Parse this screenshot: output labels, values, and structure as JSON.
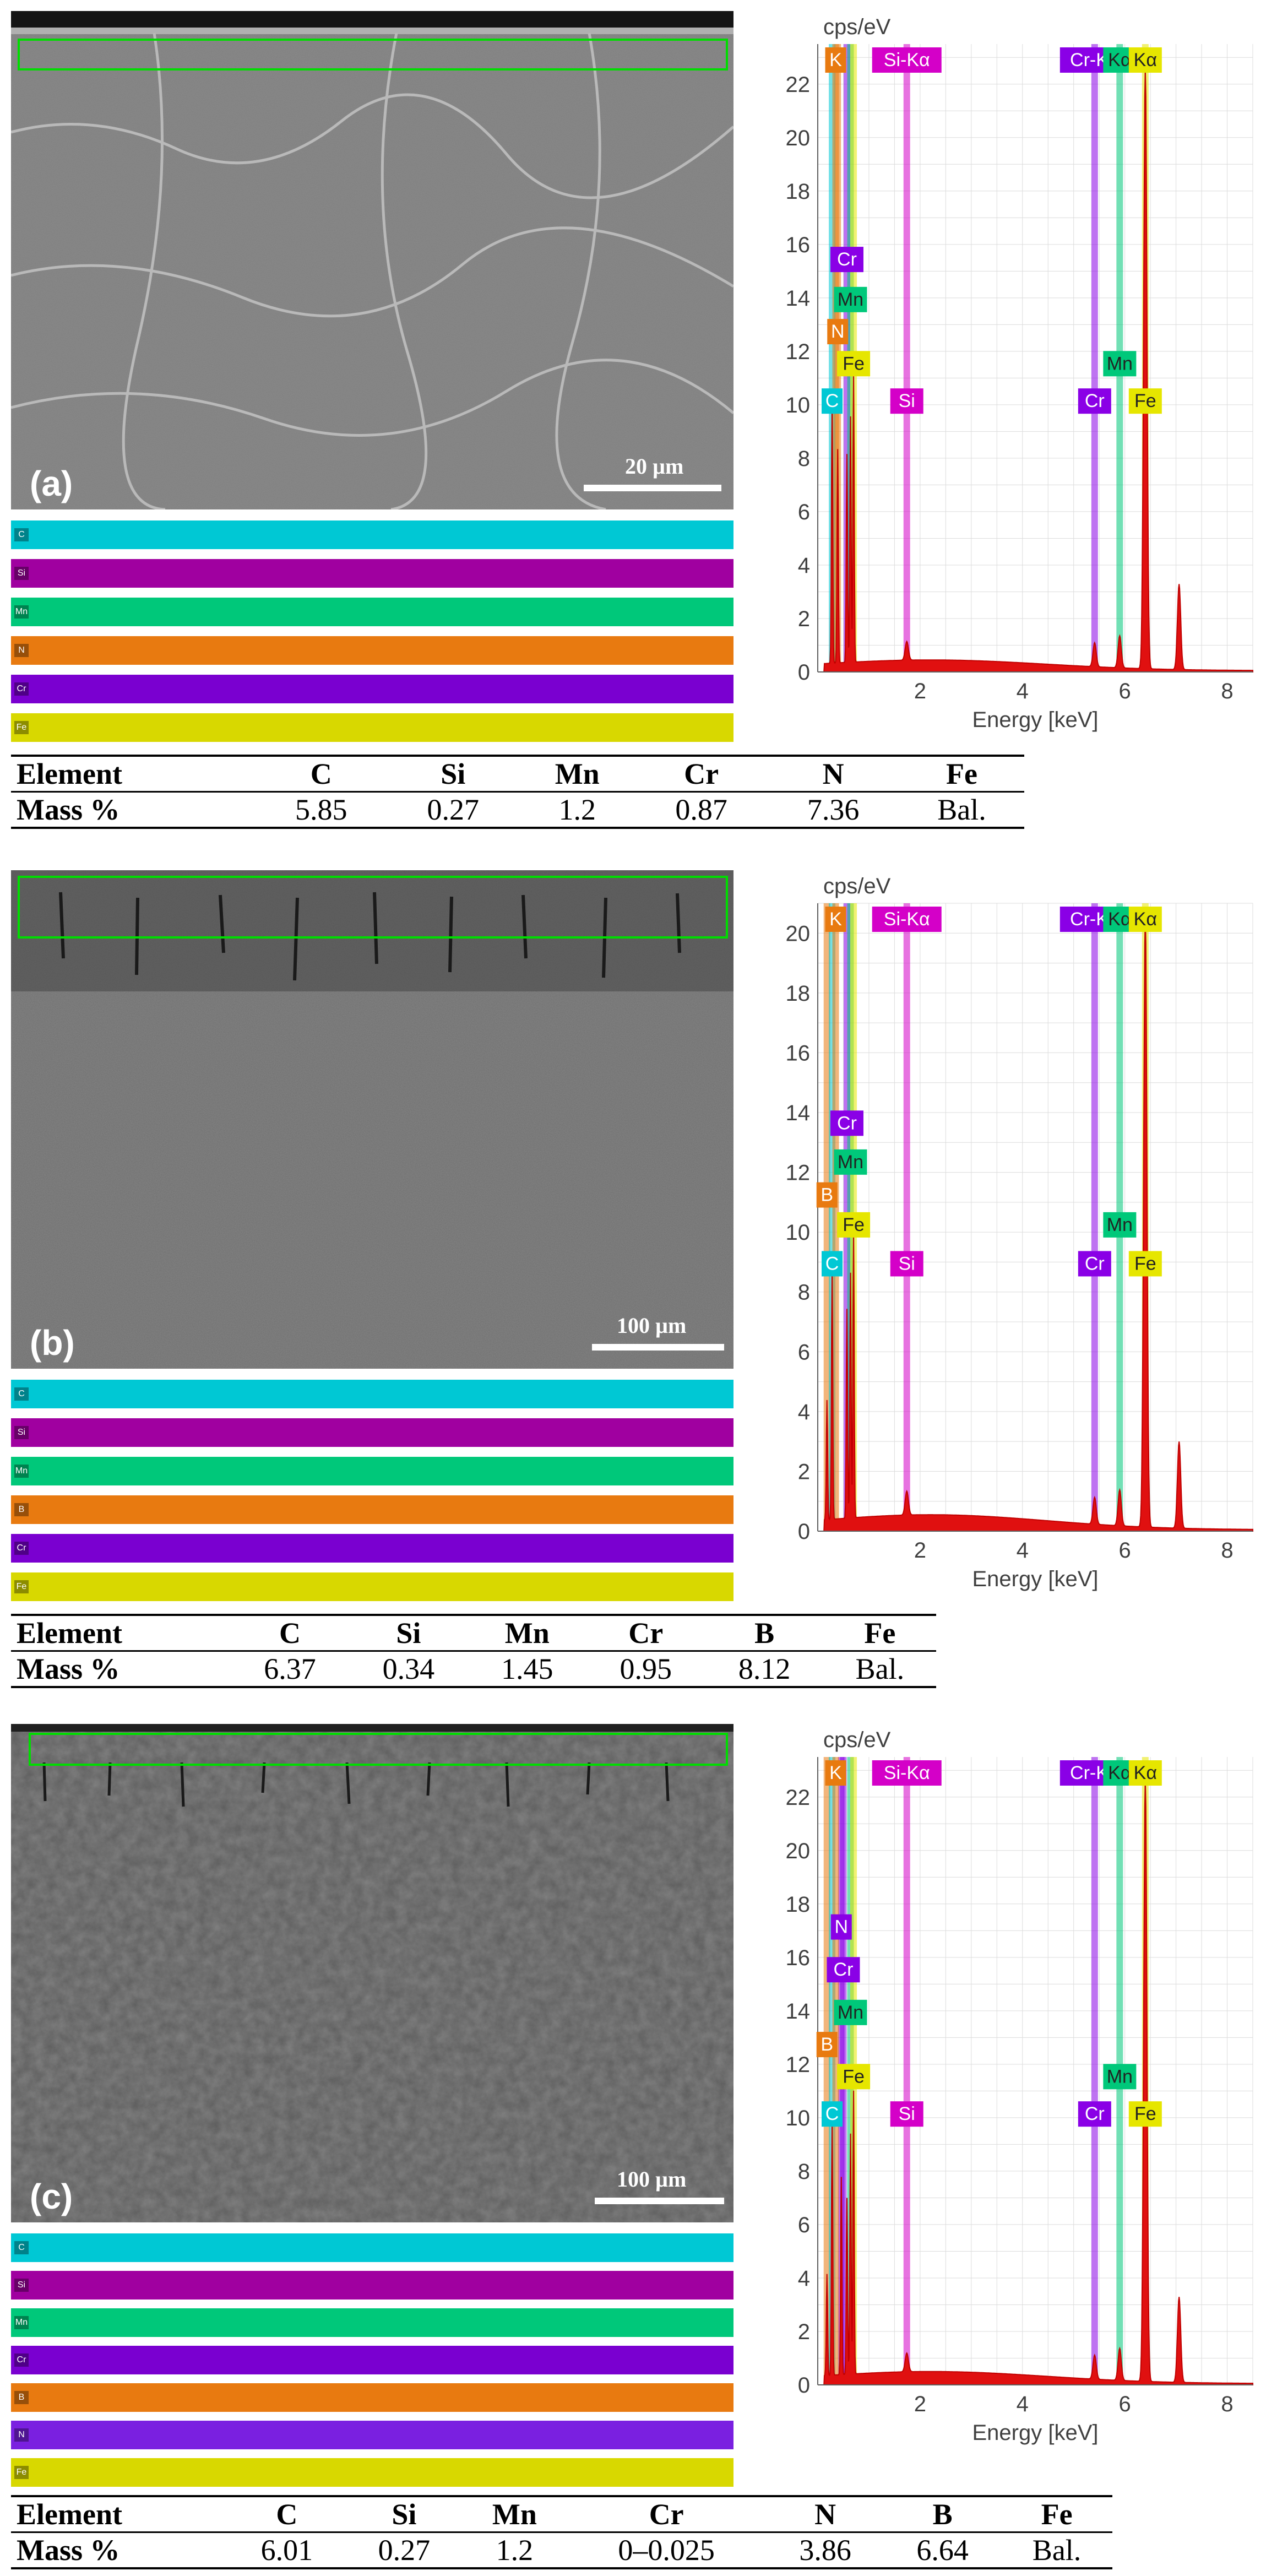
{
  "panels": [
    {
      "letter": "(a)",
      "scale_bar": "20 µm",
      "bands": [
        "C",
        "Si",
        "Mn",
        "N",
        "Cr",
        "Fe"
      ],
      "band_colors": [
        "#00c8d4",
        "#d400c8",
        "#00c87a",
        "#e87a10",
        "#8a00e6",
        "#e6e600"
      ],
      "table": {
        "header": [
          "Element",
          "C",
          "Si",
          "Mn",
          "Cr",
          "N",
          "Fe"
        ],
        "values": [
          "Mass %",
          "5.85",
          "0.27",
          "1.2",
          "0.87",
          "7.36",
          "Bal."
        ]
      }
    },
    {
      "letter": "(b)",
      "scale_bar": "100 µm",
      "bands": [
        "C",
        "Si",
        "Mn",
        "B",
        "Cr",
        "Fe"
      ],
      "band_colors": [
        "#00c8d4",
        "#d400c8",
        "#00c87a",
        "#e87a10",
        "#8a00e6",
        "#e6e600"
      ],
      "table": {
        "header": [
          "Element",
          "C",
          "Si",
          "Mn",
          "Cr",
          "B",
          "Fe"
        ],
        "values": [
          "Mass %",
          "6.37",
          "0.34",
          "1.45",
          "0.95",
          "8.12",
          "Bal."
        ]
      }
    },
    {
      "letter": "(c)",
      "scale_bar": "100 µm",
      "bands": [
        "C",
        "Si",
        "Mn",
        "Cr",
        "B",
        "N",
        "Fe"
      ],
      "band_colors": [
        "#00c8d4",
        "#d400c8",
        "#00c87a",
        "#8a00e6",
        "#e87a10",
        "#8a00e6",
        "#e6e600"
      ],
      "table": {
        "header": [
          "Element",
          "C",
          "Si",
          "Mn",
          "Cr",
          "N",
          "B",
          "Fe"
        ],
        "values": [
          "Mass %",
          "6.01",
          "0.27",
          "1.2",
          "0–0.025",
          "3.86",
          "6.64",
          "Bal."
        ]
      }
    }
  ],
  "chart_data": [
    {
      "type": "line",
      "ylabel": "cps/eV",
      "xlabel": "Energy [keV]",
      "xlim": [
        0,
        8.5
      ],
      "ylim": [
        0,
        23.5
      ],
      "x_ticks": [
        2,
        4,
        6,
        8
      ],
      "y_ticks": [
        0,
        2,
        4,
        6,
        8,
        10,
        12,
        14,
        16,
        18,
        20,
        22
      ],
      "grid": true,
      "top_labels": [
        {
          "text": "K",
          "x": 0.35,
          "color": "#e87a10"
        },
        {
          "text": "Si-Kα",
          "x": 1.74,
          "color": "#d400c8"
        },
        {
          "text": "Cr-Kα",
          "x": 5.41,
          "color": "#8a00e6"
        },
        {
          "text": "Kα",
          "x": 5.9,
          "color": "#00c87a"
        },
        {
          "text": "Kα",
          "x": 6.4,
          "color": "#e6e600"
        }
      ],
      "line_labels": [
        {
          "text": "Cr",
          "x": 0.57,
          "y": 15.5,
          "color": "#8a00e6"
        },
        {
          "text": "Mn",
          "x": 0.64,
          "y": 14.0,
          "color": "#00c87a"
        },
        {
          "text": "N",
          "x": 0.39,
          "y": 12.8,
          "color": "#e87a10"
        },
        {
          "text": "Fe",
          "x": 0.7,
          "y": 11.6,
          "color": "#e6e600"
        },
        {
          "text": "C",
          "x": 0.28,
          "y": 10.2,
          "color": "#00c8d4"
        },
        {
          "text": "Si",
          "x": 1.74,
          "y": 10.2,
          "color": "#d400c8"
        },
        {
          "text": "Cr",
          "x": 5.41,
          "y": 10.2,
          "color": "#8a00e6"
        },
        {
          "text": "Mn",
          "x": 5.9,
          "y": 11.6,
          "color": "#00c87a"
        },
        {
          "text": "Fe",
          "x": 6.4,
          "y": 10.2,
          "color": "#e6e600"
        }
      ],
      "peaks": [
        {
          "x": 0.28,
          "y": 9.8
        },
        {
          "x": 0.39,
          "y": 8.0
        },
        {
          "x": 0.57,
          "y": 7.8
        },
        {
          "x": 0.64,
          "y": 9.2
        },
        {
          "x": 0.7,
          "y": 10.8
        },
        {
          "x": 1.74,
          "y": 0.7
        },
        {
          "x": 5.41,
          "y": 0.9
        },
        {
          "x": 5.9,
          "y": 1.2
        },
        {
          "x": 6.4,
          "y": 22.5
        },
        {
          "x": 7.06,
          "y": 3.2
        }
      ],
      "background_level": 0.4
    },
    {
      "type": "line",
      "ylabel": "cps/eV",
      "xlabel": "Energy [keV]",
      "xlim": [
        0,
        8.5
      ],
      "ylim": [
        0,
        21
      ],
      "x_ticks": [
        2,
        4,
        6,
        8
      ],
      "y_ticks": [
        0,
        2,
        4,
        6,
        8,
        10,
        12,
        14,
        16,
        18,
        20
      ],
      "grid": true,
      "top_labels": [
        {
          "text": "K",
          "x": 0.35,
          "color": "#e87a10"
        },
        {
          "text": "Si-Kα",
          "x": 1.74,
          "color": "#d400c8"
        },
        {
          "text": "Cr-Kα",
          "x": 5.41,
          "color": "#8a00e6"
        },
        {
          "text": "Kα",
          "x": 5.9,
          "color": "#00c87a"
        },
        {
          "text": "Kα",
          "x": 6.4,
          "color": "#e6e600"
        }
      ],
      "line_labels": [
        {
          "text": "Cr",
          "x": 0.57,
          "y": 13.7,
          "color": "#8a00e6"
        },
        {
          "text": "Mn",
          "x": 0.64,
          "y": 12.4,
          "color": "#00c87a"
        },
        {
          "text": "B",
          "x": 0.18,
          "y": 11.3,
          "color": "#e87a10"
        },
        {
          "text": "Fe",
          "x": 0.7,
          "y": 10.3,
          "color": "#e6e600"
        },
        {
          "text": "C",
          "x": 0.28,
          "y": 9.0,
          "color": "#00c8d4"
        },
        {
          "text": "Si",
          "x": 1.74,
          "y": 9.0,
          "color": "#d400c8"
        },
        {
          "text": "Cr",
          "x": 5.41,
          "y": 9.0,
          "color": "#8a00e6"
        },
        {
          "text": "Mn",
          "x": 5.9,
          "y": 10.3,
          "color": "#00c87a"
        },
        {
          "text": "Fe",
          "x": 6.4,
          "y": 9.0,
          "color": "#e6e600"
        }
      ],
      "peaks": [
        {
          "x": 0.18,
          "y": 4.0
        },
        {
          "x": 0.28,
          "y": 8.5
        },
        {
          "x": 0.57,
          "y": 7.0
        },
        {
          "x": 0.64,
          "y": 8.2
        },
        {
          "x": 0.7,
          "y": 9.6
        },
        {
          "x": 1.74,
          "y": 0.8
        },
        {
          "x": 5.41,
          "y": 0.9
        },
        {
          "x": 5.9,
          "y": 1.2
        },
        {
          "x": 6.4,
          "y": 20.5
        },
        {
          "x": 7.06,
          "y": 2.9
        }
      ],
      "background_level": 0.5
    },
    {
      "type": "line",
      "ylabel": "cps/eV",
      "xlabel": "Energy [keV]",
      "xlim": [
        0,
        8.5
      ],
      "ylim": [
        0,
        23.5
      ],
      "x_ticks": [
        2,
        4,
        6,
        8
      ],
      "y_ticks": [
        0,
        2,
        4,
        6,
        8,
        10,
        12,
        14,
        16,
        18,
        20,
        22
      ],
      "grid": true,
      "top_labels": [
        {
          "text": "K",
          "x": 0.35,
          "color": "#e87a10"
        },
        {
          "text": "Si-Kα",
          "x": 1.74,
          "color": "#d400c8"
        },
        {
          "text": "Cr-Kα",
          "x": 5.41,
          "color": "#8a00e6"
        },
        {
          "text": "Kα",
          "x": 5.9,
          "color": "#00c87a"
        },
        {
          "text": "Kα",
          "x": 6.4,
          "color": "#e6e600"
        }
      ],
      "line_labels": [
        {
          "text": "N",
          "x": 0.46,
          "y": 17.2,
          "color": "#8a00e6"
        },
        {
          "text": "Cr",
          "x": 0.5,
          "y": 15.6,
          "color": "#8a00e6"
        },
        {
          "text": "Mn",
          "x": 0.64,
          "y": 14.0,
          "color": "#00c87a"
        },
        {
          "text": "B",
          "x": 0.18,
          "y": 12.8,
          "color": "#e87a10"
        },
        {
          "text": "Fe",
          "x": 0.7,
          "y": 11.6,
          "color": "#e6e600"
        },
        {
          "text": "C",
          "x": 0.28,
          "y": 10.2,
          "color": "#00c8d4"
        },
        {
          "text": "Si",
          "x": 1.74,
          "y": 10.2,
          "color": "#d400c8"
        },
        {
          "text": "Cr",
          "x": 5.41,
          "y": 10.2,
          "color": "#8a00e6"
        },
        {
          "text": "Mn",
          "x": 5.9,
          "y": 11.6,
          "color": "#00c87a"
        },
        {
          "text": "Fe",
          "x": 6.4,
          "y": 10.2,
          "color": "#e6e600"
        }
      ],
      "peaks": [
        {
          "x": 0.18,
          "y": 3.8
        },
        {
          "x": 0.28,
          "y": 9.6
        },
        {
          "x": 0.46,
          "y": 7.4
        },
        {
          "x": 0.57,
          "y": 6.6
        },
        {
          "x": 0.64,
          "y": 9.0
        },
        {
          "x": 0.7,
          "y": 10.6
        },
        {
          "x": 1.74,
          "y": 0.7
        },
        {
          "x": 5.41,
          "y": 0.9
        },
        {
          "x": 5.9,
          "y": 1.2
        },
        {
          "x": 6.4,
          "y": 22.6
        },
        {
          "x": 7.06,
          "y": 3.2
        }
      ],
      "background_level": 0.45
    }
  ]
}
